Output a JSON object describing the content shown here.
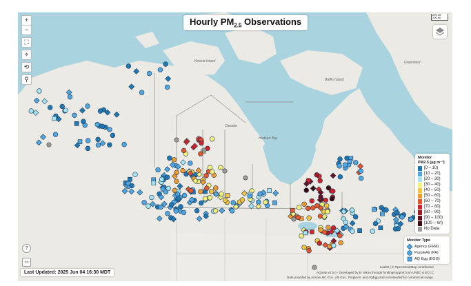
{
  "title": {
    "main": "Hourly PM",
    "sub": "2.5",
    "end": " Observations"
  },
  "controls": {
    "zoom_in": "+",
    "zoom_out": "−",
    "fullscreen": "⛶",
    "locate": "⌖",
    "reset": "⟲",
    "search": "⚲"
  },
  "scale": {
    "top": "200 km",
    "bottom": "200 mi"
  },
  "places": [
    "Hudson Bay",
    "Canada",
    "Baffin Island",
    "Victoria Island",
    "Greenland"
  ],
  "legend": {
    "title": "Monitor",
    "subtitle": "PM2.5 (µg m⁻³)",
    "bins": [
      {
        "label": "[0 – 10)",
        "color": "#1f78b4"
      },
      {
        "label": "[10 – 20)",
        "color": "#4fa6e0"
      },
      {
        "label": "[20 – 30)",
        "color": "#a6e3f3"
      },
      {
        "label": "[30 – 40)",
        "color": "#f5f07a"
      },
      {
        "label": "[40 – 50)",
        "color": "#f6c43d"
      },
      {
        "label": "[50 – 60)",
        "color": "#f39a2e"
      },
      {
        "label": "[60 – 70)",
        "color": "#e8552a"
      },
      {
        "label": "[70 – 80)",
        "color": "#d2232a"
      },
      {
        "label": "[80 – 90)",
        "color": "#9e1a24"
      },
      {
        "label": "[90 – 100)",
        "color": "#6b1020"
      },
      {
        "label": "[100 – Inf)",
        "color": "#3b0810"
      },
      {
        "label": "No Data",
        "color": "#9b9b9b"
      }
    ]
  },
  "monitor_type": {
    "title": "Monitor Type",
    "items": [
      {
        "label": "Agency (FEM)",
        "shape": "diamond"
      },
      {
        "label": "PurpleAir (PA)",
        "shape": "circle"
      },
      {
        "label": "AQ Egg (EGG)",
        "shape": "square"
      }
    ]
  },
  "last_updated": "Last Updated: 2025 Jun 04 16:30 MDT",
  "attribution": {
    "line1": "Leaflet | © OpenStreetMap contributors",
    "line2": "AQmap v2.5.0 - Developed by B. Nikon through funding/support from UNBC & ECCC",
    "line3": "Data provided by Airnow, BC Gov., AB Gov., PurpleAir, and AQEgg and not intended for commercial usage."
  },
  "buttons": {
    "help": "?",
    "embed": "▭"
  },
  "colors": {
    "water": "#a9d3df",
    "land": "#eceae4",
    "border": "#8d8d8d"
  }
}
